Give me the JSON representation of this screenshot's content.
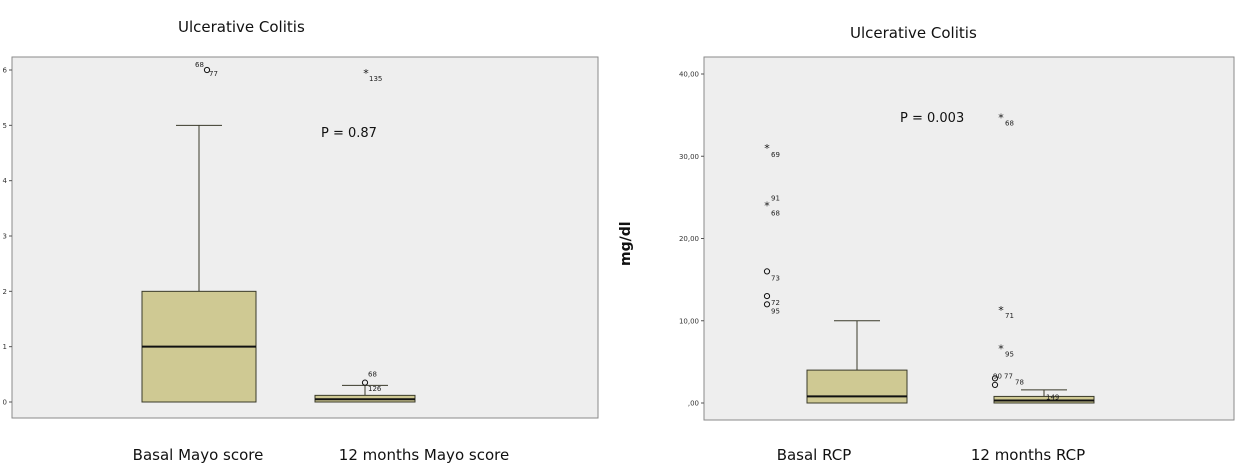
{
  "chart_data": [
    {
      "type": "boxplot",
      "title": "Ulcerative Colitis",
      "ylabel": "",
      "annotation": "P = 0.87",
      "yticks": [
        {
          "v": 0,
          "label": "0"
        },
        {
          "v": 1,
          "label": "1"
        },
        {
          "v": 2,
          "label": "2"
        },
        {
          "v": 3,
          "label": "3"
        },
        {
          "v": 4,
          "label": "4"
        },
        {
          "v": 5,
          "label": "5"
        },
        {
          "v": 6,
          "label": "6"
        }
      ],
      "ylim": [
        -0.2,
        6.35
      ],
      "boxes": [
        {
          "category": "Basal Mayo score",
          "min": 0,
          "q1": 0,
          "median": 1,
          "q3": 2,
          "max": 5,
          "outliers": [
            {
              "value": 6.0,
              "marker": "circle",
              "labels": [
                "68",
                "77"
              ]
            }
          ]
        },
        {
          "category": "12 months Mayo score",
          "min": 0,
          "q1": 0,
          "median": 0.05,
          "q3": 0.12,
          "max": 0.3,
          "outliers": [
            {
              "value": 0.35,
              "marker": "circle",
              "labels": [
                "68"
              ]
            },
            {
              "value": 5.95,
              "marker": "star",
              "labels": [
                "135"
              ]
            },
            {
              "value": 0.05,
              "marker": "none",
              "labels": [
                "126"
              ]
            }
          ]
        }
      ]
    },
    {
      "type": "boxplot",
      "title": "Ulcerative Colitis",
      "ylabel": "mg/dl",
      "annotation": "P = 0.003",
      "yticks": [
        {
          "v": 0,
          "label": ",00"
        },
        {
          "v": 10,
          "label": "10,00"
        },
        {
          "v": 20,
          "label": "20,00"
        },
        {
          "v": 30,
          "label": "30,00"
        },
        {
          "v": 40,
          "label": "40,00"
        }
      ],
      "ylim": [
        -2.2,
        41.3
      ],
      "boxes": [
        {
          "category": "Basal RCP",
          "min": 0,
          "q1": 0,
          "median": 0.8,
          "q3": 4.0,
          "max": 10,
          "outliers": [
            {
              "value": 31,
              "marker": "star",
              "labels": [
                "69"
              ]
            },
            {
              "value": 24,
              "marker": "star",
              "labels": [
                "91",
                "68"
              ]
            },
            {
              "value": 16,
              "marker": "circle",
              "labels": [
                "73"
              ]
            },
            {
              "value": 13,
              "marker": "circle",
              "labels": [
                "72"
              ]
            },
            {
              "value": 12,
              "marker": "circle",
              "labels": [
                "95"
              ]
            }
          ]
        },
        {
          "category": "12 months RCP",
          "min": 0,
          "q1": 0,
          "median": 0.3,
          "q3": 0.8,
          "max": 1.6,
          "outliers": [
            {
              "value": 34.7,
              "marker": "star",
              "labels": [
                "68"
              ]
            },
            {
              "value": 11.3,
              "marker": "star",
              "labels": [
                "71"
              ]
            },
            {
              "value": 6.6,
              "marker": "star",
              "labels": [
                "95"
              ]
            },
            {
              "value": 3.0,
              "marker": "circle",
              "labels": [
                "90",
                "77",
                "78"
              ]
            },
            {
              "value": 2.2,
              "marker": "circle",
              "labels": []
            },
            {
              "value": 0.2,
              "marker": "none",
              "labels": [
                "149"
              ]
            }
          ]
        }
      ]
    }
  ],
  "colors": {
    "box_fill": "#cfc993",
    "box_stroke": "#3a3a2a",
    "frame": "#8a8a8a",
    "plot_bg": "#eeeeee",
    "text": "#111111"
  }
}
